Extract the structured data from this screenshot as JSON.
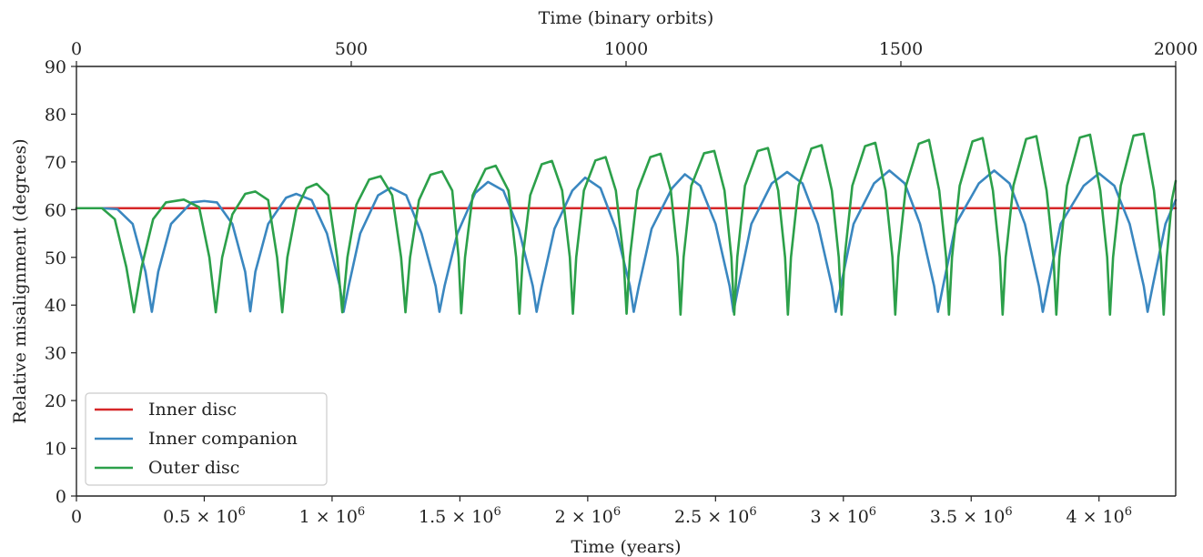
{
  "chart_data": {
    "type": "line",
    "xlabel": "Time (years)",
    "x2label": "Time (binary orbits)",
    "ylabel": "Relative misalignment (degrees)",
    "xlim": [
      0,
      4300000
    ],
    "x2lim": [
      0,
      2000
    ],
    "ylim": [
      0,
      90
    ],
    "x_ticks": [
      0,
      500000,
      1000000,
      1500000,
      2000000,
      2500000,
      3000000,
      3500000,
      4000000
    ],
    "x_tick_labels": [
      {
        "base": "0",
        "exp": ""
      },
      {
        "base": "0.5 × 10",
        "exp": "6"
      },
      {
        "base": "1 × 10",
        "exp": "6"
      },
      {
        "base": "1.5 × 10",
        "exp": "6"
      },
      {
        "base": "2 × 10",
        "exp": "6"
      },
      {
        "base": "2.5 × 10",
        "exp": "6"
      },
      {
        "base": "3 × 10",
        "exp": "6"
      },
      {
        "base": "3.5 × 10",
        "exp": "6"
      },
      {
        "base": "4 × 10",
        "exp": "6"
      }
    ],
    "x2_ticks": [
      0,
      500,
      1000,
      1500,
      2000
    ],
    "x2_tick_labels": [
      "0",
      "500",
      "1000",
      "1500",
      "2000"
    ],
    "y_ticks": [
      0,
      10,
      20,
      30,
      40,
      50,
      60,
      70,
      80,
      90
    ],
    "y_tick_labels": [
      "0",
      "10",
      "20",
      "30",
      "40",
      "50",
      "60",
      "70",
      "80",
      "90"
    ],
    "grid": false,
    "legend_position": "lower-left",
    "series": [
      {
        "name": "Inner disc",
        "color": "#d62728",
        "points": [
          [
            0,
            60.3
          ],
          [
            4300000,
            60.3
          ]
        ]
      },
      {
        "name": "Inner companion",
        "color": "#3a87c0",
        "points": [
          [
            0,
            60.3
          ],
          [
            100000,
            60.3
          ],
          [
            160000,
            60.1
          ],
          [
            220000,
            57
          ],
          [
            270000,
            47
          ],
          [
            295000,
            38.6
          ],
          [
            320000,
            47
          ],
          [
            370000,
            57
          ],
          [
            450000,
            61.5
          ],
          [
            500000,
            61.8
          ],
          [
            550000,
            61.5
          ],
          [
            610000,
            57
          ],
          [
            660000,
            47
          ],
          [
            680000,
            38.7
          ],
          [
            700000,
            47
          ],
          [
            750000,
            57
          ],
          [
            820000,
            62.5
          ],
          [
            860000,
            63.3
          ],
          [
            920000,
            62
          ],
          [
            980000,
            55
          ],
          [
            1030000,
            44
          ],
          [
            1045000,
            38.6
          ],
          [
            1065000,
            44
          ],
          [
            1110000,
            55
          ],
          [
            1180000,
            63
          ],
          [
            1230000,
            64.6
          ],
          [
            1290000,
            63
          ],
          [
            1350000,
            55
          ],
          [
            1405000,
            44
          ],
          [
            1420000,
            38.6
          ],
          [
            1440000,
            44
          ],
          [
            1490000,
            55
          ],
          [
            1560000,
            63.5
          ],
          [
            1610000,
            65.8
          ],
          [
            1670000,
            64
          ],
          [
            1730000,
            56
          ],
          [
            1785000,
            44
          ],
          [
            1800000,
            38.6
          ],
          [
            1820000,
            44
          ],
          [
            1870000,
            56
          ],
          [
            1940000,
            64
          ],
          [
            1990000,
            66.7
          ],
          [
            2050000,
            64.5
          ],
          [
            2110000,
            56
          ],
          [
            2165000,
            44
          ],
          [
            2180000,
            38.6
          ],
          [
            2200000,
            44
          ],
          [
            2250000,
            56
          ],
          [
            2330000,
            64.5
          ],
          [
            2380000,
            67.4
          ],
          [
            2440000,
            65
          ],
          [
            2500000,
            57
          ],
          [
            2555000,
            44
          ],
          [
            2570000,
            38.6
          ],
          [
            2590000,
            44
          ],
          [
            2640000,
            57
          ],
          [
            2720000,
            65.5
          ],
          [
            2780000,
            67.9
          ],
          [
            2840000,
            65.5
          ],
          [
            2900000,
            57
          ],
          [
            2955000,
            44
          ],
          [
            2970000,
            38.6
          ],
          [
            2990000,
            44
          ],
          [
            3040000,
            57
          ],
          [
            3120000,
            65.5
          ],
          [
            3180000,
            68.2
          ],
          [
            3240000,
            65.5
          ],
          [
            3300000,
            57
          ],
          [
            3355000,
            44
          ],
          [
            3370000,
            38.6
          ],
          [
            3390000,
            44
          ],
          [
            3440000,
            57
          ],
          [
            3530000,
            65.5
          ],
          [
            3590000,
            68.2
          ],
          [
            3650000,
            65.5
          ],
          [
            3710000,
            57
          ],
          [
            3765000,
            44
          ],
          [
            3780000,
            38.6
          ],
          [
            3800000,
            44
          ],
          [
            3850000,
            57
          ],
          [
            3940000,
            65
          ],
          [
            4000000,
            67.6
          ],
          [
            4060000,
            65
          ],
          [
            4120000,
            57
          ],
          [
            4175000,
            44
          ],
          [
            4190000,
            38.6
          ],
          [
            4210000,
            44
          ],
          [
            4260000,
            57
          ],
          [
            4300000,
            62
          ]
        ]
      },
      {
        "name": "Outer disc",
        "color": "#2ca04a",
        "points": [
          [
            0,
            60.3
          ],
          [
            100000,
            60.3
          ],
          [
            150000,
            58
          ],
          [
            195000,
            48
          ],
          [
            225000,
            38.5
          ],
          [
            255000,
            48
          ],
          [
            300000,
            58
          ],
          [
            350000,
            61.5
          ],
          [
            420000,
            62.1
          ],
          [
            480000,
            60.5
          ],
          [
            520000,
            50
          ],
          [
            545000,
            38.5
          ],
          [
            570000,
            50
          ],
          [
            610000,
            59
          ],
          [
            660000,
            63.3
          ],
          [
            700000,
            63.8
          ],
          [
            750000,
            62
          ],
          [
            785000,
            50
          ],
          [
            805000,
            38.5
          ],
          [
            825000,
            50
          ],
          [
            860000,
            60
          ],
          [
            900000,
            64.5
          ],
          [
            940000,
            65.4
          ],
          [
            985000,
            63
          ],
          [
            1020000,
            50
          ],
          [
            1040000,
            38.5
          ],
          [
            1060000,
            50
          ],
          [
            1095000,
            61
          ],
          [
            1145000,
            66.3
          ],
          [
            1190000,
            67
          ],
          [
            1235000,
            63
          ],
          [
            1270000,
            50
          ],
          [
            1287000,
            38.5
          ],
          [
            1305000,
            50
          ],
          [
            1340000,
            62
          ],
          [
            1385000,
            67.3
          ],
          [
            1430000,
            68
          ],
          [
            1470000,
            64
          ],
          [
            1495000,
            50
          ],
          [
            1505000,
            38.3
          ],
          [
            1520000,
            50
          ],
          [
            1550000,
            63
          ],
          [
            1600000,
            68.5
          ],
          [
            1640000,
            69.2
          ],
          [
            1690000,
            64
          ],
          [
            1720000,
            50
          ],
          [
            1733000,
            38.2
          ],
          [
            1746000,
            50
          ],
          [
            1775000,
            63
          ],
          [
            1820000,
            69.5
          ],
          [
            1860000,
            70.2
          ],
          [
            1900000,
            64
          ],
          [
            1930000,
            50
          ],
          [
            1942000,
            38.2
          ],
          [
            1955000,
            50
          ],
          [
            1985000,
            64
          ],
          [
            2030000,
            70.3
          ],
          [
            2070000,
            71
          ],
          [
            2110000,
            64
          ],
          [
            2140000,
            50
          ],
          [
            2152000,
            38.2
          ],
          [
            2165000,
            50
          ],
          [
            2195000,
            64
          ],
          [
            2245000,
            71
          ],
          [
            2285000,
            71.7
          ],
          [
            2325000,
            64
          ],
          [
            2352000,
            50
          ],
          [
            2363000,
            38
          ],
          [
            2375000,
            50
          ],
          [
            2405000,
            65
          ],
          [
            2455000,
            71.8
          ],
          [
            2495000,
            72.3
          ],
          [
            2535000,
            64
          ],
          [
            2562000,
            50
          ],
          [
            2573000,
            38
          ],
          [
            2585000,
            50
          ],
          [
            2615000,
            65
          ],
          [
            2665000,
            72.3
          ],
          [
            2705000,
            72.9
          ],
          [
            2745000,
            64
          ],
          [
            2772000,
            50
          ],
          [
            2783000,
            38
          ],
          [
            2795000,
            50
          ],
          [
            2825000,
            65
          ],
          [
            2875000,
            72.8
          ],
          [
            2915000,
            73.5
          ],
          [
            2955000,
            64
          ],
          [
            2982000,
            50
          ],
          [
            2993000,
            38
          ],
          [
            3005000,
            50
          ],
          [
            3035000,
            65
          ],
          [
            3085000,
            73.3
          ],
          [
            3125000,
            74
          ],
          [
            3165000,
            64
          ],
          [
            3192000,
            50
          ],
          [
            3203000,
            38
          ],
          [
            3215000,
            50
          ],
          [
            3245000,
            65
          ],
          [
            3295000,
            73.8
          ],
          [
            3335000,
            74.6
          ],
          [
            3375000,
            64
          ],
          [
            3402000,
            50
          ],
          [
            3413000,
            38
          ],
          [
            3425000,
            50
          ],
          [
            3455000,
            65
          ],
          [
            3505000,
            74.3
          ],
          [
            3545000,
            75
          ],
          [
            3585000,
            64
          ],
          [
            3612000,
            50
          ],
          [
            3623000,
            38
          ],
          [
            3635000,
            50
          ],
          [
            3665000,
            65
          ],
          [
            3715000,
            74.8
          ],
          [
            3755000,
            75.4
          ],
          [
            3795000,
            64
          ],
          [
            3822000,
            50
          ],
          [
            3833000,
            38
          ],
          [
            3845000,
            50
          ],
          [
            3875000,
            65
          ],
          [
            3925000,
            75.1
          ],
          [
            3965000,
            75.7
          ],
          [
            4005000,
            64
          ],
          [
            4032000,
            50
          ],
          [
            4043000,
            38
          ],
          [
            4055000,
            50
          ],
          [
            4085000,
            65
          ],
          [
            4135000,
            75.5
          ],
          [
            4175000,
            75.9
          ],
          [
            4215000,
            64
          ],
          [
            4242000,
            50
          ],
          [
            4253000,
            38
          ],
          [
            4265000,
            50
          ],
          [
            4285000,
            62
          ],
          [
            4300000,
            66
          ]
        ]
      }
    ]
  }
}
